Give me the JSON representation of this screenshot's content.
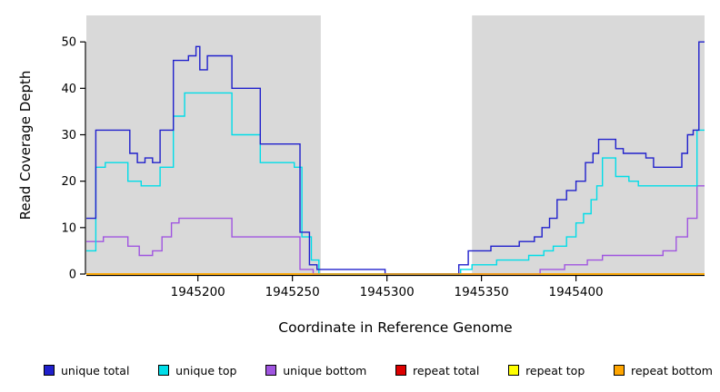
{
  "chart_data": {
    "type": "line",
    "style": "step",
    "title": "",
    "xlabel": "Coordinate in Reference Genome",
    "ylabel": "Read Coverage Depth",
    "xlim": [
      1945141,
      1945468
    ],
    "ylim": [
      0,
      55.7
    ],
    "x_ticks": [
      1945200,
      1945250,
      1945300,
      1945350,
      1945400
    ],
    "y_ticks": [
      0,
      10,
      20,
      30,
      40,
      50
    ],
    "grid": false,
    "background_color": "#ffffff",
    "shaded_regions": [
      {
        "x0": 1945141,
        "x1": 1945265,
        "color": "#d9d9d9"
      },
      {
        "x0": 1945345,
        "x1": 1945468,
        "color": "#d9d9d9"
      }
    ],
    "legend": {
      "position": "bottom",
      "items": [
        {
          "label": "unique total",
          "color": "#2020cc"
        },
        {
          "label": "unique top",
          "color": "#00dde8"
        },
        {
          "label": "unique bottom",
          "color": "#a055e0"
        },
        {
          "label": "repeat total",
          "color": "#dd0000"
        },
        {
          "label": "repeat top",
          "color": "#ffff00"
        },
        {
          "label": "repeat bottom",
          "color": "#ffa500"
        }
      ]
    },
    "series": [
      {
        "name": "repeat total",
        "color": "#dd0000",
        "steps": [
          [
            1945141,
            0
          ],
          [
            1945468,
            0
          ]
        ]
      },
      {
        "name": "repeat top",
        "color": "#ffff00",
        "steps": [
          [
            1945141,
            0
          ],
          [
            1945468,
            0
          ]
        ]
      },
      {
        "name": "unique bottom",
        "color": "#a055e0",
        "steps": [
          [
            1945141,
            7
          ],
          [
            1945150,
            8
          ],
          [
            1945163,
            6
          ],
          [
            1945169,
            4
          ],
          [
            1945176,
            5
          ],
          [
            1945181,
            8
          ],
          [
            1945186,
            11
          ],
          [
            1945190,
            12
          ],
          [
            1945218,
            8
          ],
          [
            1945254,
            1
          ],
          [
            1945261,
            0
          ],
          [
            1945381,
            1
          ],
          [
            1945394,
            2
          ],
          [
            1945406,
            3
          ],
          [
            1945414,
            4
          ],
          [
            1945446,
            5
          ],
          [
            1945453,
            8
          ],
          [
            1945459,
            12
          ],
          [
            1945464,
            19
          ],
          [
            1945468,
            19
          ]
        ]
      },
      {
        "name": "unique top",
        "color": "#00dde8",
        "steps": [
          [
            1945141,
            5
          ],
          [
            1945146,
            23
          ],
          [
            1945151,
            24
          ],
          [
            1945163,
            20
          ],
          [
            1945170,
            19
          ],
          [
            1945180,
            23
          ],
          [
            1945187,
            34
          ],
          [
            1945193,
            39
          ],
          [
            1945218,
            30
          ],
          [
            1945233,
            24
          ],
          [
            1945251,
            23
          ],
          [
            1945255,
            8
          ],
          [
            1945260,
            3
          ],
          [
            1945264,
            0
          ],
          [
            1945339,
            1
          ],
          [
            1945345,
            2
          ],
          [
            1945358,
            3
          ],
          [
            1945375,
            4
          ],
          [
            1945383,
            5
          ],
          [
            1945388,
            6
          ],
          [
            1945395,
            8
          ],
          [
            1945400,
            11
          ],
          [
            1945404,
            13
          ],
          [
            1945408,
            16
          ],
          [
            1945411,
            19
          ],
          [
            1945414,
            25
          ],
          [
            1945421,
            21
          ],
          [
            1945428,
            20
          ],
          [
            1945433,
            19
          ],
          [
            1945464,
            31
          ],
          [
            1945468,
            31
          ]
        ]
      },
      {
        "name": "unique total",
        "color": "#2020cc",
        "steps": [
          [
            1945141,
            12
          ],
          [
            1945146,
            31
          ],
          [
            1945164,
            26
          ],
          [
            1945168,
            24
          ],
          [
            1945172,
            25
          ],
          [
            1945176,
            24
          ],
          [
            1945180,
            31
          ],
          [
            1945187,
            46
          ],
          [
            1945195,
            47
          ],
          [
            1945199,
            49
          ],
          [
            1945201,
            44
          ],
          [
            1945205,
            47
          ],
          [
            1945218,
            40
          ],
          [
            1945233,
            28
          ],
          [
            1945254,
            9
          ],
          [
            1945259,
            2
          ],
          [
            1945263,
            1
          ],
          [
            1945299,
            0
          ],
          [
            1945338,
            2
          ],
          [
            1945343,
            5
          ],
          [
            1945355,
            6
          ],
          [
            1945370,
            7
          ],
          [
            1945378,
            8
          ],
          [
            1945382,
            10
          ],
          [
            1945386,
            12
          ],
          [
            1945390,
            16
          ],
          [
            1945395,
            18
          ],
          [
            1945400,
            20
          ],
          [
            1945405,
            24
          ],
          [
            1945409,
            26
          ],
          [
            1945412,
            29
          ],
          [
            1945421,
            27
          ],
          [
            1945425,
            26
          ],
          [
            1945437,
            25
          ],
          [
            1945441,
            23
          ],
          [
            1945456,
            26
          ],
          [
            1945459,
            30
          ],
          [
            1945462,
            31
          ],
          [
            1945465,
            50
          ],
          [
            1945468,
            50
          ]
        ]
      },
      {
        "name": "repeat bottom",
        "color": "#ffa500",
        "steps": [
          [
            1945141,
            0
          ],
          [
            1945468,
            0
          ]
        ]
      }
    ]
  }
}
